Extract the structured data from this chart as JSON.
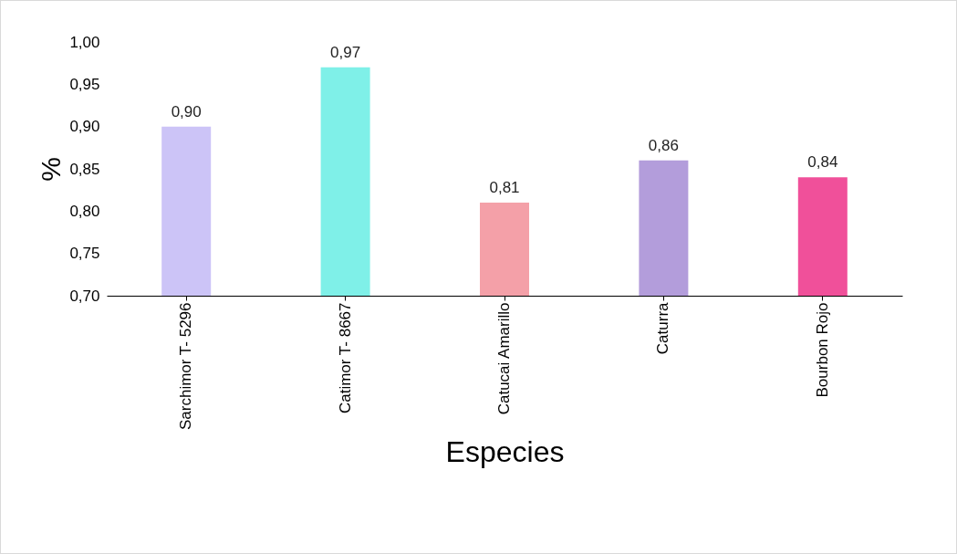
{
  "chart_data": {
    "type": "bar",
    "xlabel": "Especies",
    "ylabel": "%",
    "categories": [
      "Sarchimor T- 5296",
      "Catimor T- 8667",
      "Catucai Amarillo",
      "Caturra",
      "Bourbon Rojo"
    ],
    "values": [
      0.9,
      0.97,
      0.81,
      0.86,
      0.84
    ],
    "value_labels": [
      "0,90",
      "0,97",
      "0,81",
      "0,86",
      "0,84"
    ],
    "colors": [
      "#ccc4f7",
      "#7ff0e8",
      "#f4a0a8",
      "#b39ddb",
      "#f0509a"
    ],
    "ylim": [
      0.7,
      1.0
    ],
    "yticks": [
      {
        "value": 0.7,
        "label": "0,70"
      },
      {
        "value": 0.75,
        "label": "0,75"
      },
      {
        "value": 0.8,
        "label": "0,80"
      },
      {
        "value": 0.85,
        "label": "0,85"
      },
      {
        "value": 0.9,
        "label": "0,90"
      },
      {
        "value": 0.95,
        "label": "0,95"
      },
      {
        "value": 1.0,
        "label": "1,00"
      }
    ],
    "grid": false,
    "legend": false
  }
}
